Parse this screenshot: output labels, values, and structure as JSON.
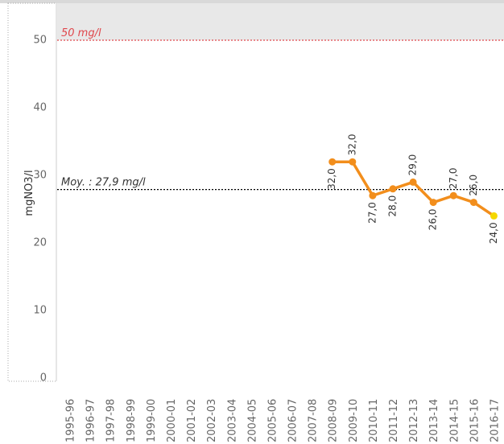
{
  "chart_data": {
    "type": "line",
    "y_label": "mgNO3/l",
    "categories": [
      "1995-96",
      "1996-97",
      "1997-98",
      "1998-99",
      "1999-00",
      "2000-01",
      "2001-02",
      "2002-03",
      "2003-04",
      "2004-05",
      "2005-06",
      "2006-07",
      "2007-08",
      "2008-09",
      "2009-10",
      "2010-11",
      "2011-12",
      "2012-13",
      "2013-14",
      "2014-15",
      "2015-16",
      "2016-17"
    ],
    "series": [
      {
        "color": "#f28e1c",
        "last_point_color": "#f5d800",
        "values": [
          null,
          null,
          null,
          null,
          null,
          null,
          null,
          null,
          null,
          null,
          null,
          null,
          null,
          32,
          32,
          27,
          28,
          29,
          26,
          27,
          26,
          24
        ],
        "value_labels": [
          null,
          null,
          null,
          null,
          null,
          null,
          null,
          null,
          null,
          null,
          null,
          null,
          null,
          "32,0",
          "32,0",
          "27,0",
          "28,0",
          "29,0",
          "26,0",
          "27,0",
          "26,0",
          "24,0"
        ]
      }
    ],
    "reference_lines": [
      {
        "value": 50,
        "label": "50 mg/l",
        "color": "#e0474c"
      },
      {
        "value": 27.9,
        "label": "Moy. : 27,9 mg/l",
        "color": "#000000"
      }
    ],
    "ylim": [
      0,
      55
    ],
    "yticks": [
      0,
      10,
      20,
      30,
      40,
      50
    ]
  }
}
